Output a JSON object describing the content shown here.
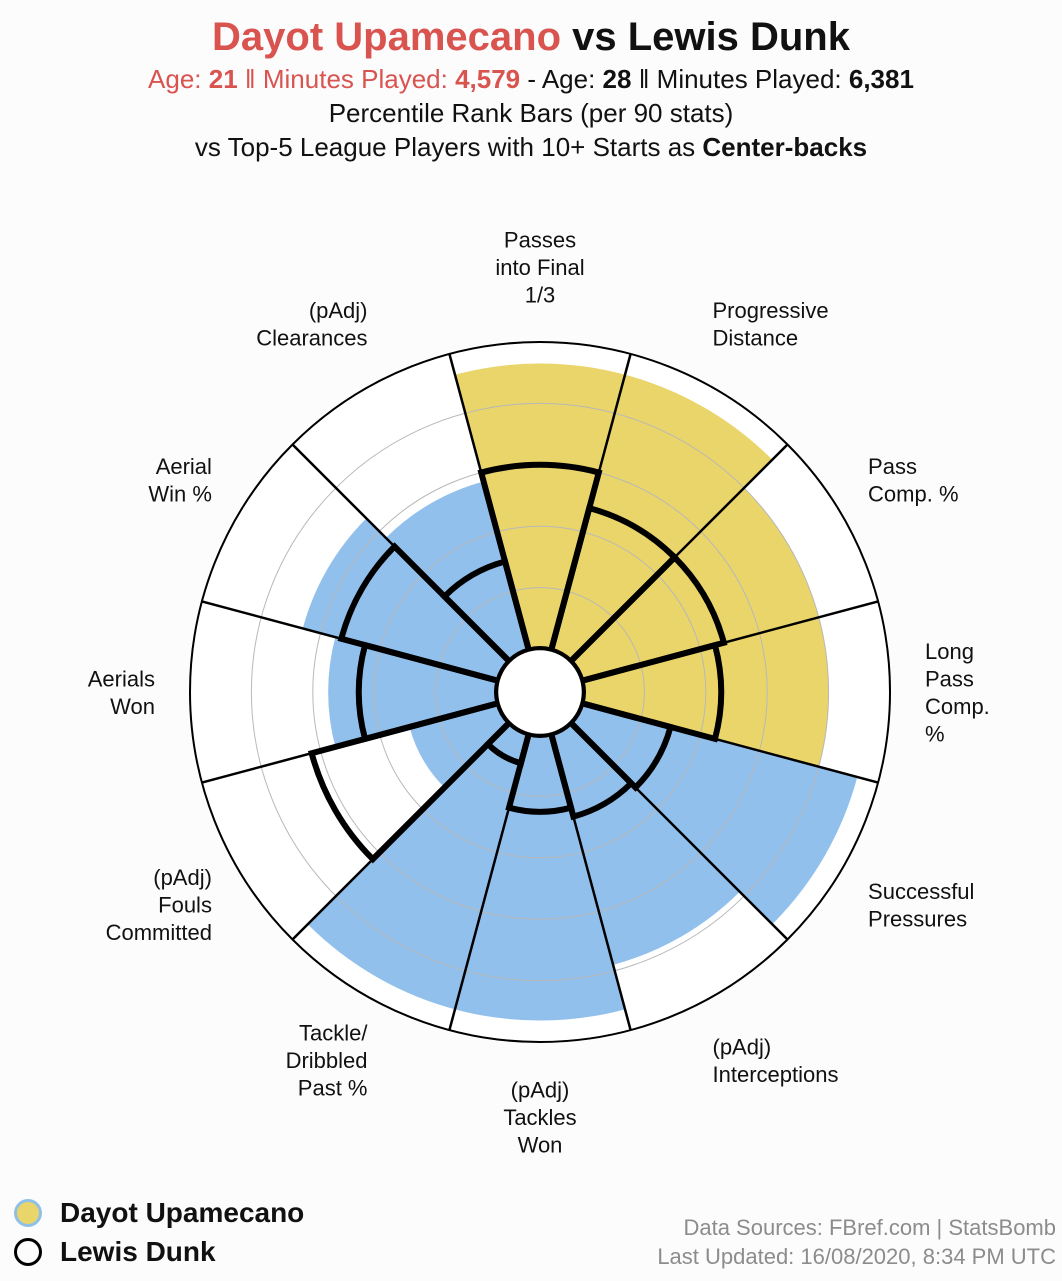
{
  "header": {
    "title_player1": "Dayot Upamecano",
    "title_vs": " vs Lewis Dunk",
    "age_label": "Age: ",
    "minutes_label": "Minutes Played: ",
    "sep_double": " ‖ ",
    "sep_dash": " - ",
    "player1_age": "21",
    "player1_minutes": "4,579",
    "player2_age": "28",
    "player2_minutes": "6,381",
    "line3": "Percentile Rank Bars (per 90 stats)",
    "line4_prefix": "vs Top-5 League Players with 10+ Starts as ",
    "line4_bold": "Center-backs"
  },
  "chart_data": {
    "type": "polar-bar",
    "scale": [
      0,
      100
    ],
    "grid": true,
    "categories": [
      [
        "Passes",
        "into Final",
        "1/3"
      ],
      [
        "Progressive",
        "Distance"
      ],
      [
        "Pass",
        "Comp. %"
      ],
      [
        "Long",
        "Pass",
        "Comp.",
        "%"
      ],
      [
        "Successful",
        "Pressures"
      ],
      [
        "(pAdj)",
        "Interceptions"
      ],
      [
        "(pAdj)",
        "Tackles",
        "Won"
      ],
      [
        "Tackle/",
        "Dribbled",
        "Past %"
      ],
      [
        "(pAdj)",
        "Fouls",
        "Committed"
      ],
      [
        "Aerials",
        "Won"
      ],
      [
        "Aerial",
        "Win %"
      ],
      [
        "(pAdj)",
        "Clearances"
      ]
    ],
    "series": [
      {
        "name": "Dayot Upamecano",
        "values": [
          93,
          93,
          80,
          80,
          93,
          78,
          93,
          93,
          30,
          55,
          66,
          57
        ],
        "bar_colors": [
          "#e9d56a",
          "#e9d56a",
          "#e9d56a",
          "#e9d56a",
          "#92c0ec",
          "#92c0ec",
          "#92c0ec",
          "#92c0ec",
          "#92c0ec",
          "#92c0ec",
          "#92c0ec",
          "#92c0ec"
        ]
      },
      {
        "name": "Lewis Dunk",
        "values": [
          60,
          48,
          48,
          45,
          30,
          28,
          25,
          10,
          63,
          45,
          53,
          30
        ],
        "outline_color": "#000000"
      }
    ]
  },
  "legend": [
    {
      "label": "Dayot Upamecano"
    },
    {
      "label": "Lewis Dunk"
    }
  ],
  "sources": {
    "line1": "Data Sources: FBref.com | StatsBomb",
    "line2": "Last Updated: 16/08/2020, 8:34 PM UTC"
  }
}
